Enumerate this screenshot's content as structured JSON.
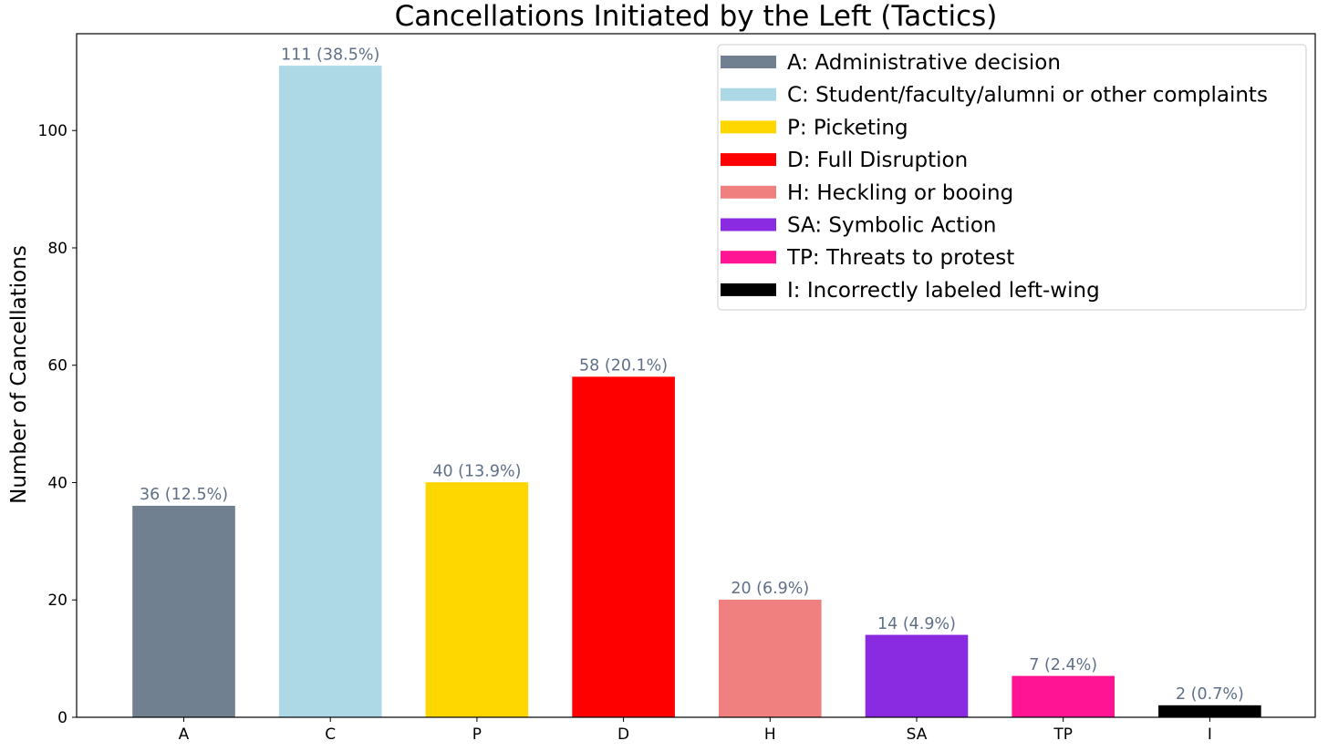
{
  "chart_data": {
    "type": "bar",
    "title": "Cancellations Initiated by the Left (Tactics)",
    "xlabel": "",
    "ylabel": "Number of Cancellations",
    "ylim": [
      0,
      116.5
    ],
    "yticks": [
      0,
      20,
      40,
      60,
      80,
      100
    ],
    "grid": false,
    "legend_position": "top-right",
    "categories": [
      "A",
      "C",
      "P",
      "D",
      "H",
      "SA",
      "TP",
      "I"
    ],
    "values": [
      36,
      111,
      40,
      58,
      20,
      14,
      7,
      2
    ],
    "bar_labels": [
      "36 (12.5%)",
      "111 (38.5%)",
      "40 (13.9%)",
      "58 (20.1%)",
      "20 (6.9%)",
      "14 (4.9%)",
      "7 (2.4%)",
      "2 (0.7%)"
    ],
    "colors": [
      "#708090",
      "#add8e6",
      "#ffd700",
      "#ff0000",
      "#f08080",
      "#8a2be2",
      "#ff1493",
      "#000000"
    ],
    "legend": [
      "A: Administrative decision",
      "C: Student/faculty/alumni or other complaints",
      "P: Picketing",
      "D: Full Disruption",
      "H: Heckling or booing",
      "SA: Symbolic Action",
      "TP: Threats to protest",
      "I: Incorrectly labeled left-wing"
    ],
    "bar_label_color": "#5f7088"
  }
}
